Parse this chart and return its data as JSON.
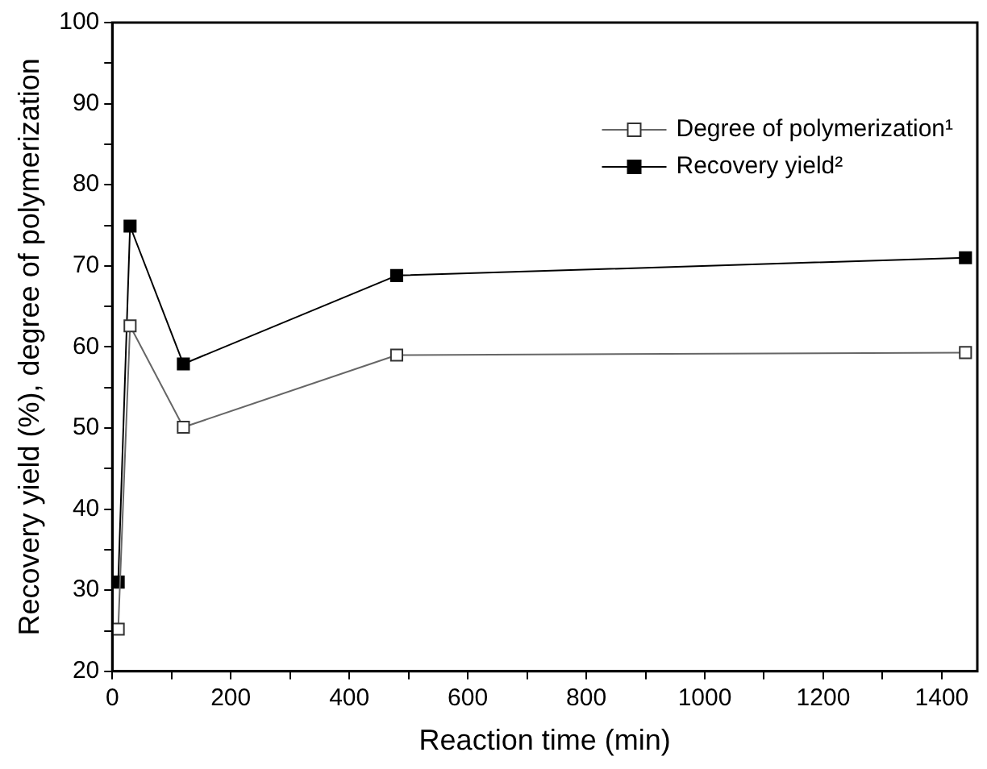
{
  "chart_data": {
    "type": "line",
    "xlabel": "Reaction time (min)",
    "ylabel": "Recovery yield (%), degree of polymerization",
    "x": [
      10,
      30,
      120,
      480,
      1440
    ],
    "series": [
      {
        "name": "Degree of polymerization¹",
        "color": "#666666",
        "marker": "square",
        "values": [
          25.2,
          62.6,
          50.1,
          59.0,
          59.3
        ]
      },
      {
        "name": "Recovery yield²",
        "color": "#000000",
        "marker": "square",
        "values": [
          31.0,
          74.9,
          57.9,
          68.8,
          71.0
        ]
      }
    ],
    "xlim": [
      0,
      1460
    ],
    "xticks": [
      0,
      {
        "value": 100,
        "label": null
      },
      200,
      {
        "value": 300,
        "label": null
      },
      400,
      {
        "value": 500,
        "label": null
      },
      600,
      {
        "value": 700,
        "label": null
      },
      800,
      {
        "value": 900,
        "label": null
      },
      1000,
      {
        "value": 1100,
        "label": null
      },
      1200,
      {
        "value": 1300,
        "label": null
      },
      1400
    ],
    "ylim": [
      20,
      100
    ],
    "yticks": [
      20,
      {
        "value": 25,
        "label": null
      },
      30,
      {
        "value": 35,
        "label": null
      },
      40,
      {
        "value": 45,
        "label": null
      },
      50,
      {
        "value": 55,
        "label": null
      },
      60,
      {
        "value": 65,
        "label": null
      },
      70,
      {
        "value": 75,
        "label": null
      },
      80,
      {
        "value": 85,
        "label": null
      },
      90,
      {
        "value": 95,
        "label": null
      },
      100
    ],
    "legend": "top right",
    "line_style": "solid"
  }
}
